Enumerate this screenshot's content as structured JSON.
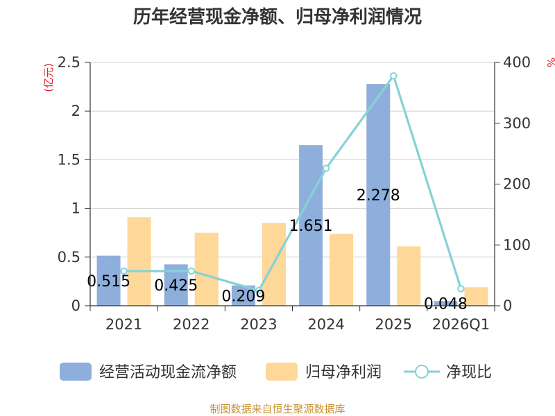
{
  "title": "历年经营现金净额、归母净利润情况",
  "source": "制图数据来自恒生聚源数据库",
  "chart_data": {
    "type": "bar",
    "categories": [
      "2021",
      "2022",
      "2023",
      "2024",
      "2025",
      "2026Q1"
    ],
    "series": [
      {
        "name": "经营活动现金流净额",
        "kind": "bar",
        "axis": "left",
        "color": "#8eafdc",
        "values": [
          0.515,
          0.425,
          0.209,
          1.651,
          2.278,
          0.048
        ],
        "labels": [
          "0.515",
          "0.425",
          "0.209",
          "1.651",
          "2.278",
          "0.048"
        ]
      },
      {
        "name": "归母净利润",
        "kind": "bar",
        "axis": "left",
        "color": "#fdd898",
        "values": [
          0.91,
          0.75,
          0.85,
          0.74,
          0.61,
          0.19
        ]
      },
      {
        "name": "净现比",
        "kind": "line",
        "axis": "right",
        "color": "#84d2d6",
        "values": [
          57,
          57,
          25,
          226,
          378,
          28
        ]
      }
    ],
    "left_axis": {
      "unit": "(亿元)",
      "ylim": [
        0,
        2.5
      ],
      "ticks": [
        "0",
        "0.5",
        "1",
        "1.5",
        "2",
        "2.5"
      ]
    },
    "right_axis": {
      "unit": "%",
      "ylim": [
        0,
        400
      ],
      "ticks": [
        "0",
        "100",
        "200",
        "300",
        "400"
      ]
    },
    "grid": true,
    "legend_position": "bottom"
  }
}
